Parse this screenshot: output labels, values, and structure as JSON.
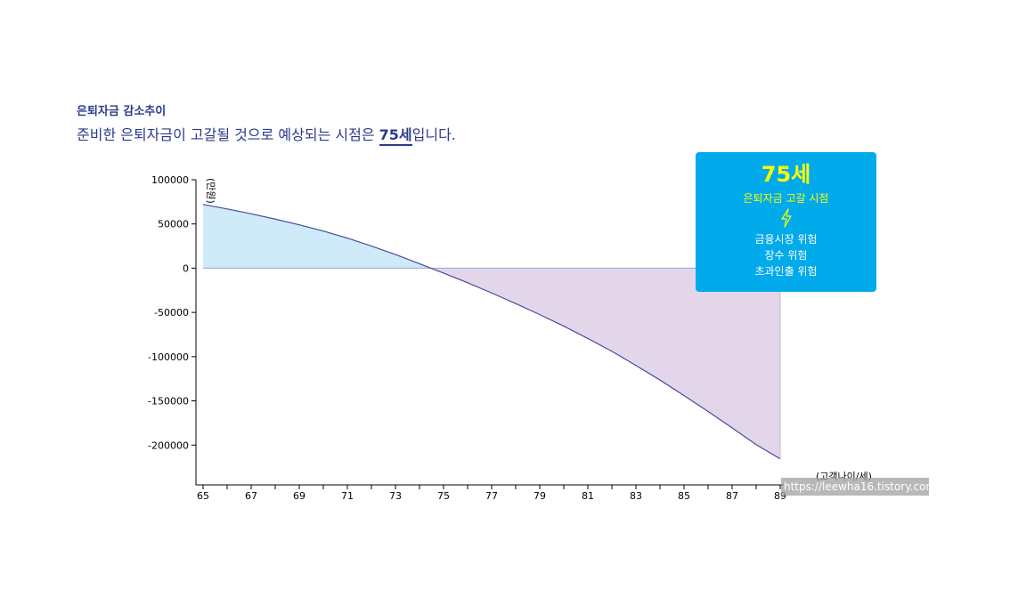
{
  "section_title": "은퇴자금 감소추이",
  "headline": {
    "before": "준비한 은퇴자금이 고갈될 것으로 예상되는 시점은 ",
    "highlight": "75세",
    "after": "입니다."
  },
  "info_card": {
    "age": "75세",
    "label": "은퇴자금 고갈 시점",
    "icon": "lightning-bolt-icon",
    "risks": [
      "금융시장 위험",
      "장수 위험",
      "초과인출 위험"
    ]
  },
  "watermark": "https://leewha16.tistory.com",
  "colors": {
    "positive_fill": "#cfeaf8",
    "negative_fill": "#e4d6ea",
    "line": "#4a4a9e",
    "card": "#00aaeb",
    "card_highlight": "#ffff00"
  },
  "chart_data": {
    "type": "area",
    "xlabel": "(고객나이/세)",
    "ylabel": "(만원)",
    "x_ticks": [
      65,
      67,
      69,
      71,
      73,
      75,
      77,
      79,
      81,
      83,
      85,
      87,
      89
    ],
    "y_ticks": [
      100000,
      50000,
      0,
      -50000,
      -100000,
      -150000,
      -200000
    ],
    "xlim": [
      65,
      89
    ],
    "ylim": [
      -245000,
      100000
    ],
    "x": [
      65,
      66,
      67,
      68,
      69,
      70,
      71,
      72,
      73,
      74,
      75,
      76,
      77,
      78,
      79,
      80,
      81,
      82,
      83,
      84,
      85,
      86,
      87,
      88,
      89
    ],
    "y": [
      72000,
      67000,
      61500,
      55500,
      49000,
      42000,
      34000,
      25000,
      15500,
      5000,
      -5500,
      -16500,
      -28000,
      -40000,
      -52500,
      -65500,
      -79500,
      -94000,
      -110000,
      -126500,
      -144000,
      -162000,
      -180500,
      -199500,
      -215500
    ]
  }
}
